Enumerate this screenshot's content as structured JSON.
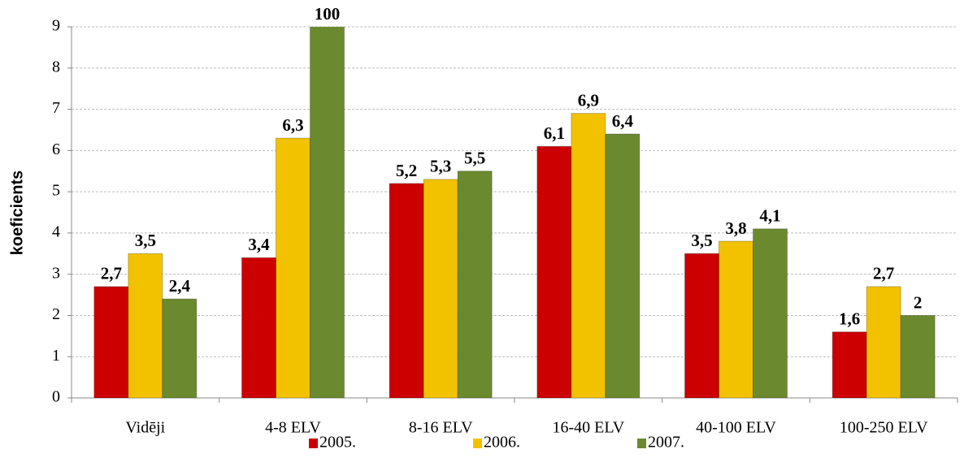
{
  "chart_data": {
    "type": "bar",
    "y_label": "koeficients",
    "categories": [
      "Vidēji",
      "4-8 ELV",
      "8-16 ELV",
      "16-40 ELV",
      "40-100 ELV",
      "100-250 ELV"
    ],
    "series": [
      {
        "name": "2005.",
        "color": "#cc0000",
        "values": [
          2.7,
          3.4,
          5.2,
          6.1,
          3.5,
          1.6
        ],
        "value_labels": [
          "2,7",
          "3,4",
          "5,2",
          "6,1",
          "3,5",
          "1,6"
        ]
      },
      {
        "name": "2006.",
        "color": "#f2c200",
        "values": [
          3.5,
          6.3,
          5.3,
          6.9,
          3.8,
          2.7
        ],
        "value_labels": [
          "3,5",
          "6,3",
          "5,3",
          "6,9",
          "3,8",
          "2,7"
        ]
      },
      {
        "name": "2007.",
        "color": "#6b8a2f",
        "values": [
          2.4,
          100,
          5.5,
          6.4,
          4.1,
          2
        ],
        "value_labels": [
          "2,4",
          "100",
          "5,5",
          "6,4",
          "4,1",
          "2"
        ]
      }
    ],
    "ylim": [
      0,
      9
    ],
    "yticks": [
      0,
      1,
      2,
      3,
      4,
      5,
      6,
      7,
      8,
      9
    ],
    "grid": true,
    "legend": "bottom"
  }
}
